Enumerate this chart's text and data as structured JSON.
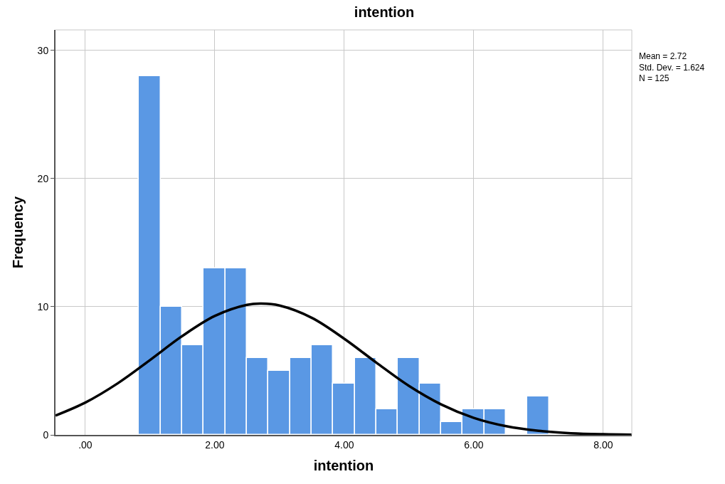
{
  "chart_data": {
    "type": "histogram",
    "title": "intention",
    "xlabel": "intention",
    "ylabel": "Frequency",
    "series": [
      {
        "color": "#5a98e4",
        "bins": [
          0.83,
          1.17,
          1.5,
          1.83,
          2.17,
          2.5,
          2.83,
          3.17,
          3.5,
          3.83,
          4.17,
          4.5,
          4.83,
          5.17,
          5.5,
          5.83,
          6.17,
          6.5,
          6.83,
          7.17
        ],
        "values": [
          28,
          10,
          7,
          13,
          13,
          6,
          5,
          6,
          7,
          4,
          6,
          2,
          6,
          4,
          1,
          2,
          2,
          0,
          3
        ]
      },
      {
        "type": "line",
        "color": "#000000",
        "x": [
          -0.46,
          0,
          0.5,
          1,
          1.5,
          2,
          2.5,
          2.72,
          3,
          3.5,
          4,
          4.5,
          5,
          5.5,
          6,
          6.5,
          7,
          7.5,
          8,
          8.44
        ],
        "values": [
          1.51,
          2.52,
          4.02,
          5.84,
          7.72,
          9.28,
          10.15,
          10.24,
          10.09,
          9.13,
          7.5,
          5.62,
          3.82,
          2.37,
          1.33,
          0.68,
          0.32,
          0.13,
          0.05,
          0.02
        ]
      }
    ],
    "xlim": [
      -0.46,
      8.44
    ],
    "xticks": [
      {
        "value": 0,
        "label": ".00"
      },
      {
        "value": 2,
        "label": "2.00"
      },
      {
        "value": 4,
        "label": "4.00"
      },
      {
        "value": 6,
        "label": "6.00"
      },
      {
        "value": 8,
        "label": "8.00"
      }
    ],
    "ylim": [
      0,
      31.6
    ],
    "yticks": [
      0,
      10,
      20,
      30
    ],
    "grid": true,
    "legend": false,
    "annotations": [
      "Mean = 2.72",
      "Std. Dev. = 1.624",
      "N = 125"
    ]
  }
}
